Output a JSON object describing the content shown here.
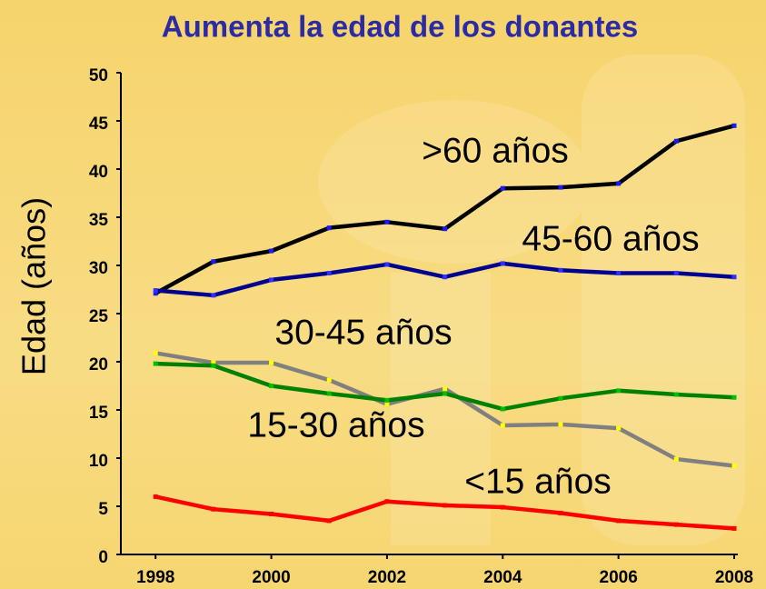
{
  "chart_data": {
    "type": "line",
    "title": "Aumenta la edad de los donantes",
    "y_label": "Edad (años)",
    "x": [
      1998,
      1999,
      2000,
      2001,
      2002,
      2003,
      2004,
      2005,
      2006,
      2007,
      2008
    ],
    "xlim": [
      1997.4,
      2008
    ],
    "xticks": [
      1998,
      2000,
      2002,
      2004,
      2006,
      2008
    ],
    "ylim": [
      0,
      50
    ],
    "yticks": [
      0,
      5,
      10,
      15,
      20,
      25,
      30,
      35,
      40,
      45,
      50
    ],
    "series": [
      {
        "name": ">60 años",
        "color": "#000000",
        "marker_color": "#1a1aff",
        "values": [
          27.1,
          30.4,
          31.5,
          33.9,
          34.5,
          33.8,
          38.0,
          38.1,
          38.5,
          42.9,
          44.5
        ]
      },
      {
        "name": "45-60 años",
        "color": "#000090",
        "marker_color": "#3030ff",
        "values": [
          27.4,
          26.9,
          28.5,
          29.2,
          30.1,
          28.8,
          30.2,
          29.5,
          29.2,
          29.2,
          28.8
        ]
      },
      {
        "name": "30-45 años",
        "color": "#808080",
        "marker_color": "#ffff00",
        "values": [
          20.9,
          19.9,
          19.9,
          18.1,
          15.6,
          17.2,
          13.4,
          13.5,
          13.1,
          9.9,
          9.2
        ]
      },
      {
        "name": "15-30 años",
        "color": "#008000",
        "marker_color": "#00c000",
        "values": [
          19.8,
          19.6,
          17.5,
          16.7,
          16.0,
          16.7,
          15.1,
          16.2,
          17.0,
          16.6,
          16.3
        ]
      },
      {
        "name": "<15 años",
        "color": "#ff0000",
        "marker_color": "#ff0000",
        "values": [
          6.0,
          4.7,
          4.2,
          3.5,
          5.5,
          5.1,
          4.9,
          4.3,
          3.5,
          3.1,
          2.7
        ]
      }
    ]
  }
}
